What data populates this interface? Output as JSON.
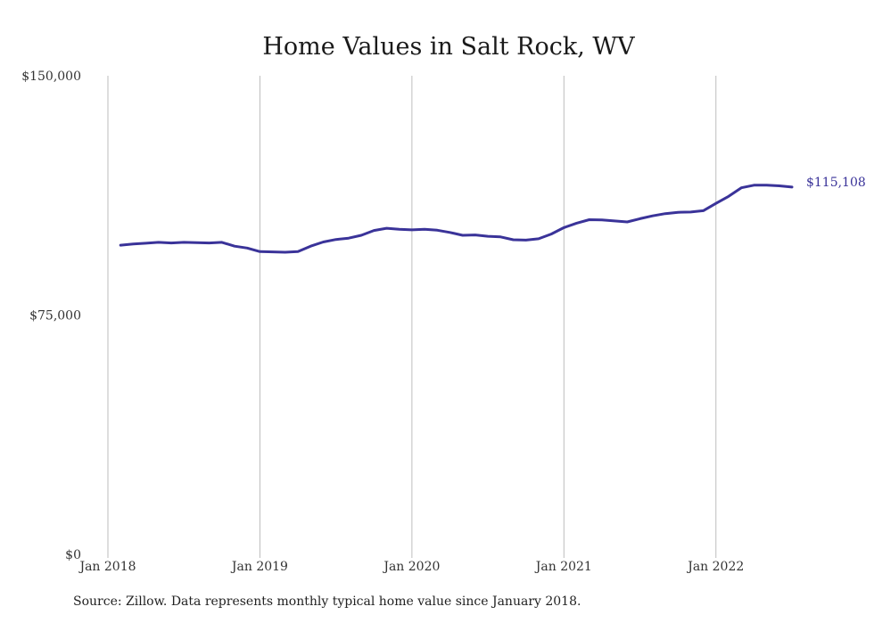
{
  "chart_data": {
    "type": "line",
    "title": "Home Values in Salt Rock, WV",
    "xlabel": "",
    "ylabel": "",
    "x_range": [
      "2018-01",
      "2022-12"
    ],
    "ylim": [
      0,
      150000
    ],
    "y_ticks": [
      {
        "value": 0,
        "label": "$0"
      },
      {
        "value": 75000,
        "label": "$75,000"
      },
      {
        "value": 150000,
        "label": "$150,000"
      }
    ],
    "x_ticks": [
      {
        "value": "2018-01",
        "label": "Jan 2018"
      },
      {
        "value": "2019-01",
        "label": "Jan 2019"
      },
      {
        "value": "2020-01",
        "label": "Jan 2020"
      },
      {
        "value": "2021-01",
        "label": "Jan 2021"
      },
      {
        "value": "2022-01",
        "label": "Jan 2022"
      }
    ],
    "grid": "vertical",
    "series": [
      {
        "color": "#3a3399",
        "end_label": "$115,108",
        "points": [
          [
            "2018-02",
            96900
          ],
          [
            "2018-03",
            97300
          ],
          [
            "2018-04",
            97500
          ],
          [
            "2018-05",
            97800
          ],
          [
            "2018-06",
            97600
          ],
          [
            "2018-07",
            97800
          ],
          [
            "2018-08",
            97700
          ],
          [
            "2018-09",
            97600
          ],
          [
            "2018-10",
            97800
          ],
          [
            "2018-11",
            96600
          ],
          [
            "2018-12",
            96000
          ],
          [
            "2019-01",
            94900
          ],
          [
            "2019-02",
            94800
          ],
          [
            "2019-03",
            94700
          ],
          [
            "2019-04",
            94900
          ],
          [
            "2019-05",
            96600
          ],
          [
            "2019-06",
            97900
          ],
          [
            "2019-07",
            98700
          ],
          [
            "2019-08",
            99100
          ],
          [
            "2019-09",
            100000
          ],
          [
            "2019-10",
            101500
          ],
          [
            "2019-11",
            102200
          ],
          [
            "2019-12",
            101900
          ],
          [
            "2020-01",
            101700
          ],
          [
            "2020-02",
            101900
          ],
          [
            "2020-03",
            101600
          ],
          [
            "2020-04",
            100900
          ],
          [
            "2020-05",
            100000
          ],
          [
            "2020-06",
            100100
          ],
          [
            "2020-07",
            99700
          ],
          [
            "2020-08",
            99500
          ],
          [
            "2020-09",
            98600
          ],
          [
            "2020-10",
            98500
          ],
          [
            "2020-11",
            98900
          ],
          [
            "2020-12",
            100400
          ],
          [
            "2021-01",
            102400
          ],
          [
            "2021-02",
            103800
          ],
          [
            "2021-03",
            104900
          ],
          [
            "2021-04",
            104800
          ],
          [
            "2021-05",
            104500
          ],
          [
            "2021-06",
            104200
          ],
          [
            "2021-07",
            105200
          ],
          [
            "2021-08",
            106100
          ],
          [
            "2021-09",
            106800
          ],
          [
            "2021-10",
            107200
          ],
          [
            "2021-11",
            107300
          ],
          [
            "2021-12",
            107700
          ],
          [
            "2022-01",
            110000
          ],
          [
            "2022-02",
            112200
          ],
          [
            "2022-03",
            114900
          ],
          [
            "2022-04",
            115700
          ],
          [
            "2022-05",
            115700
          ],
          [
            "2022-06",
            115500
          ],
          [
            "2022-07",
            115108
          ]
        ]
      }
    ]
  },
  "footer": {
    "source": "Source: Zillow. Data represents monthly typical home value since January 2018."
  }
}
